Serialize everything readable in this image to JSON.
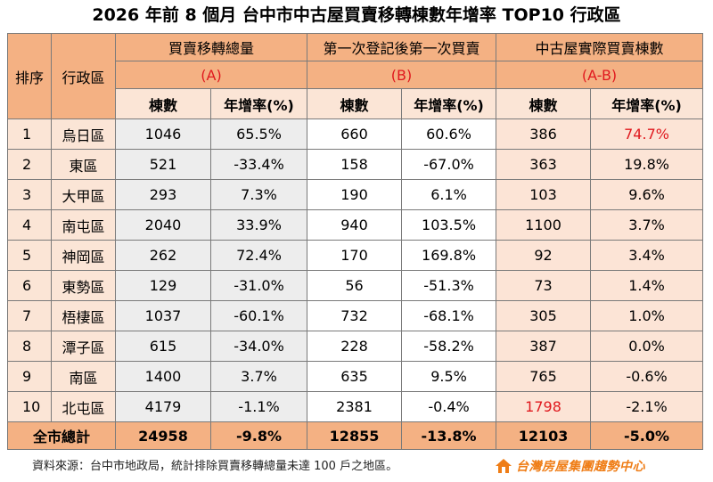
{
  "title": "2026 年前 8 個月  台中市中古屋買賣移轉棟數年增率 TOP10 行政區",
  "header": {
    "rank": "排序",
    "district": "行政區",
    "group_a": {
      "name": "買賣移轉總量",
      "code": "(A)"
    },
    "group_b": {
      "name": "第一次登記後第一次買賣",
      "code": "(B)"
    },
    "group_c": {
      "name": "中古屋實際買賣棟數",
      "code": "(A-B)"
    },
    "count_label": "棟數",
    "growth_label": "年增率(%)"
  },
  "rows": [
    {
      "rank": "1",
      "district": "烏日區",
      "a_count": "1046",
      "a_growth": "65.5%",
      "b_count": "660",
      "b_growth": "60.6%",
      "c_count": "386",
      "c_growth": "74.7%"
    },
    {
      "rank": "2",
      "district": "東區",
      "a_count": "521",
      "a_growth": "-33.4%",
      "b_count": "158",
      "b_growth": "-67.0%",
      "c_count": "363",
      "c_growth": "19.8%"
    },
    {
      "rank": "3",
      "district": "大甲區",
      "a_count": "293",
      "a_growth": "7.3%",
      "b_count": "190",
      "b_growth": "6.1%",
      "c_count": "103",
      "c_growth": "9.6%"
    },
    {
      "rank": "4",
      "district": "南屯區",
      "a_count": "2040",
      "a_growth": "33.9%",
      "b_count": "940",
      "b_growth": "103.5%",
      "c_count": "1100",
      "c_growth": "3.7%"
    },
    {
      "rank": "5",
      "district": "神岡區",
      "a_count": "262",
      "a_growth": "72.4%",
      "b_count": "170",
      "b_growth": "169.8%",
      "c_count": "92",
      "c_growth": "3.4%"
    },
    {
      "rank": "6",
      "district": "東勢區",
      "a_count": "129",
      "a_growth": "-31.0%",
      "b_count": "56",
      "b_growth": "-51.3%",
      "c_count": "73",
      "c_growth": "1.4%"
    },
    {
      "rank": "7",
      "district": "梧棲區",
      "a_count": "1037",
      "a_growth": "-60.1%",
      "b_count": "732",
      "b_growth": "-68.1%",
      "c_count": "305",
      "c_growth": "1.0%"
    },
    {
      "rank": "8",
      "district": "潭子區",
      "a_count": "615",
      "a_growth": "-34.0%",
      "b_count": "228",
      "b_growth": "-58.2%",
      "c_count": "387",
      "c_growth": "0.0%"
    },
    {
      "rank": "9",
      "district": "南區",
      "a_count": "1400",
      "a_growth": "3.7%",
      "b_count": "635",
      "b_growth": "9.5%",
      "c_count": "765",
      "c_growth": "-0.6%"
    },
    {
      "rank": "10",
      "district": "北屯區",
      "a_count": "4179",
      "a_growth": "-1.1%",
      "b_count": "2381",
      "b_growth": "-0.4%",
      "c_count": "1798",
      "c_growth": "-2.1%"
    }
  ],
  "highlighted_cells": [
    {
      "row": 0,
      "column": "c_growth"
    },
    {
      "row": 9,
      "column": "c_count"
    }
  ],
  "total": {
    "label": "全市總計",
    "a_count": "24958",
    "a_growth": "-9.8%",
    "b_count": "12855",
    "b_growth": "-13.8%",
    "c_count": "12103",
    "c_growth": "-5.0%"
  },
  "footer": {
    "source": "資料來源：台中市地政局，統計排除買賣移轉總量未達 100 戶之地區。"
  },
  "logo": {
    "text": "台灣房屋集團趨勢中心",
    "icon": "house-logo-icon"
  },
  "colors": {
    "header_orange": "#f4b183",
    "header_peach": "#fbe5d6",
    "highlight_red": "#e0191e",
    "pink_column": "#fce4d6",
    "gray_column": "#ededed",
    "logo_orange": "#ef7d16"
  }
}
